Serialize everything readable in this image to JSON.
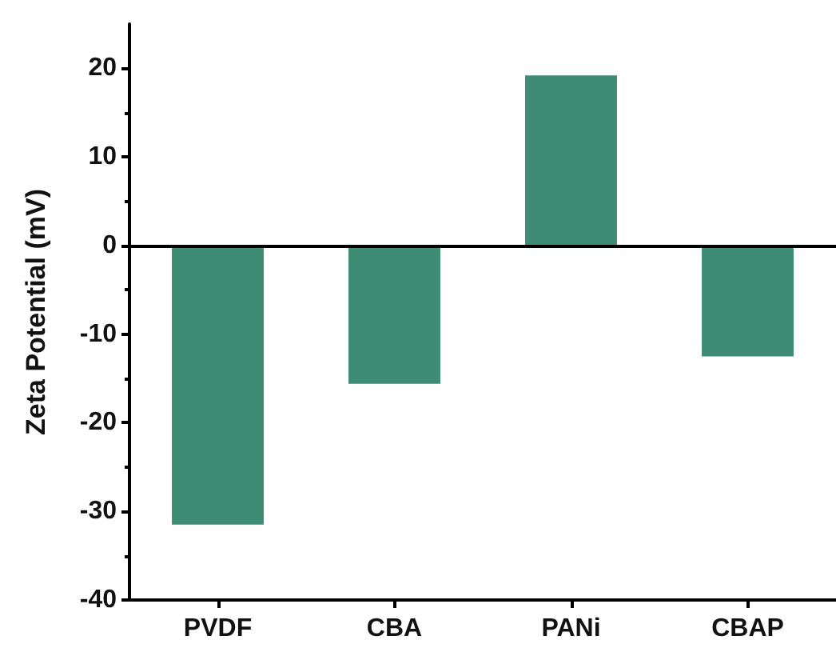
{
  "chart_data": {
    "type": "bar",
    "ylabel": "Zeta Potential (mV)",
    "categories": [
      "PVDF",
      "CBA",
      "PANi",
      "CBAP"
    ],
    "values": [
      -31.5,
      -15.6,
      19.2,
      -12.5
    ],
    "color": "#3d8c73",
    "ylim": [
      -40,
      25
    ],
    "yticks": [
      -40,
      -30,
      -20,
      -10,
      0,
      10,
      20
    ],
    "ref_lines": [
      {
        "axis": "y",
        "value": 0
      }
    ],
    "grid": false
  }
}
